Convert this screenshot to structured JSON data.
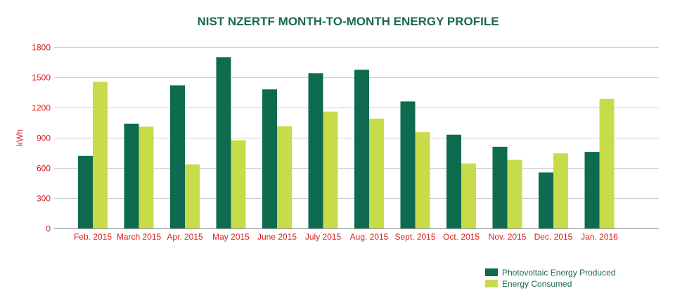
{
  "chart_data": {
    "type": "bar",
    "title": "NIST NZERTF MONTH-TO-MONTH ENERGY PROFILE",
    "xlabel": "",
    "ylabel": "kWh",
    "ylim": [
      0,
      1800
    ],
    "yticks": [
      0,
      300,
      600,
      900,
      1200,
      1500,
      1800
    ],
    "grid": true,
    "legend_position": "bottom-right",
    "categories": [
      "Feb. 2015",
      "March 2015",
      "Apr. 2015",
      "May 2015",
      "June 2015",
      "July 2015",
      "Aug. 2015",
      "Sept. 2015",
      "Oct. 2015",
      "Nov. 2015",
      "Dec. 2015",
      "Jan. 2016"
    ],
    "series": [
      {
        "name": "Photovoltaic Energy Produced",
        "color": "#0f6b4f",
        "values": [
          720,
          1040,
          1420,
          1700,
          1380,
          1540,
          1575,
          1260,
          930,
          810,
          555,
          760
        ]
      },
      {
        "name": "Energy Consumed",
        "color": "#c8dc4a",
        "values": [
          1455,
          1010,
          635,
          875,
          1015,
          1160,
          1090,
          955,
          645,
          680,
          745,
          1285
        ]
      }
    ]
  }
}
